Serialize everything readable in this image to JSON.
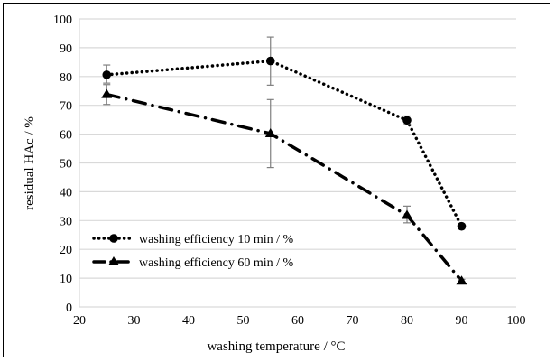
{
  "chart_data": {
    "type": "line",
    "title": "",
    "xlabel": "washing temperature / °C",
    "ylabel": "residual HAc / %",
    "xlim": [
      20,
      100
    ],
    "ylim": [
      0,
      100
    ],
    "xticks": [
      20,
      30,
      40,
      50,
      60,
      70,
      80,
      90,
      100
    ],
    "yticks": [
      0,
      10,
      20,
      30,
      40,
      50,
      60,
      70,
      80,
      90,
      100
    ],
    "grid": "horizontal",
    "legend_position": "bottom-left",
    "series": [
      {
        "name": "washing efficiency 10 min / %",
        "marker": "circle",
        "line": "dotted",
        "x": [
          25,
          55,
          80,
          90
        ],
        "y": [
          80.6,
          85.4,
          64.8,
          28
        ],
        "err_low": [
          77.7,
          77,
          63.3,
          27.2
        ],
        "err_high": [
          84,
          93.7,
          66.3,
          28.8
        ]
      },
      {
        "name": "washing efficiency 60 min / %",
        "marker": "triangle",
        "line": "dash-dot",
        "x": [
          25,
          55,
          80,
          90
        ],
        "y": [
          73.8,
          60.2,
          31.8,
          9
        ],
        "err_low": [
          70.3,
          48.4,
          29.2,
          8.4
        ],
        "err_high": [
          77.2,
          72,
          35,
          9.6
        ]
      }
    ]
  },
  "colors": {
    "line": "#000000",
    "grid": "#d9d9d9",
    "errorbar": "#7f7f7f"
  }
}
